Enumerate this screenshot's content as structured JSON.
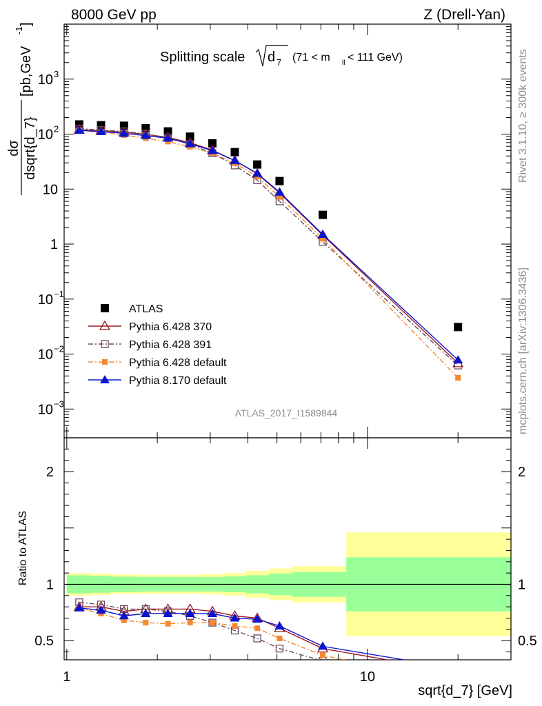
{
  "header": {
    "energy_label": "8000 GeV pp",
    "process_label": "Z (Drell-Yan)"
  },
  "side_labels": {
    "rivet": "Rivet 3.1.10, ≥ 300k events",
    "mcplots": "mcplots.cern.ch [arXiv:1306.3436]"
  },
  "watermark": "ATLAS_2017_I1589844",
  "colors": {
    "ATLAS": "#000000",
    "p370": "#9a1a22",
    "p391": "#6b4a5e",
    "p6def": "#f5872d",
    "p8def": "#0a14d0",
    "band_outer": "#ffff99",
    "band_inner": "#99ff99"
  },
  "chart_data": [
    {
      "type": "scatter",
      "panel": "main",
      "title_main": "Splitting scale",
      "title_var": "d",
      "title_sub": "7",
      "title_cut": "(71 < m",
      "title_cut_sub": "ll",
      "title_cut_end": " < 111 GeV)",
      "ylabel": "dσ / dsqrt{d_7} [pb,GeV⁻¹]",
      "ylabel_num": "dσ",
      "ylabel_den": "dsqrt{d_7}",
      "ylabel_unit": "[pb,GeV",
      "ylabel_unit_sup": "-1",
      "ylabel_unit_end": "]",
      "xscale": "log",
      "yscale": "log",
      "xlim": [
        0.98,
        30
      ],
      "ylim": [
        0.0003,
        10000
      ],
      "yticks": [
        {
          "v": 0.001,
          "base": "10",
          "exp": "−3"
        },
        {
          "v": 0.01,
          "base": "10",
          "exp": "−2"
        },
        {
          "v": 0.1,
          "base": "10",
          "exp": "−1"
        },
        {
          "v": 1,
          "base": "1",
          "exp": ""
        },
        {
          "v": 10,
          "base": "10",
          "exp": ""
        },
        {
          "v": 100,
          "base": "10",
          "exp": "2"
        },
        {
          "v": 1000,
          "base": "10",
          "exp": "3"
        }
      ],
      "x": [
        1.1,
        1.3,
        1.55,
        1.83,
        2.17,
        2.57,
        3.05,
        3.62,
        4.3,
        5.1,
        7.1,
        20.0
      ],
      "series": [
        {
          "name": "ATLAS",
          "key": "ATLAS",
          "marker": "square-filled",
          "line": "none",
          "values": [
            150,
            145,
            142,
            128,
            112,
            90,
            68,
            47,
            28,
            14,
            3.4,
            0.031
          ]
        },
        {
          "name": "Pythia 6.428 370",
          "key": "p370",
          "marker": "triangle-open",
          "line": "solid",
          "values": [
            120,
            116,
            108,
            99,
            87,
            70,
            51,
            33,
            19,
            8.5,
            1.45,
            0.0068
          ]
        },
        {
          "name": "Pythia 6.428 391",
          "key": "p391",
          "marker": "square-open",
          "line": "dashdot",
          "values": [
            126,
            118,
            112,
            101,
            86,
            65,
            45,
            27,
            14.5,
            6.0,
            1.1,
            0.0062
          ]
        },
        {
          "name": "Pythia 6.428 default",
          "key": "p6def",
          "marker": "square-filled-small",
          "line": "dashdot",
          "values": [
            118,
            108,
            96,
            84,
            73,
            59,
            45,
            29.5,
            17,
            7.2,
            1.25,
            0.0037
          ]
        },
        {
          "name": "Pythia 8.170 default",
          "key": "p8def",
          "marker": "triangle-filled",
          "line": "solid",
          "values": [
            117,
            111,
            103,
            94,
            84,
            67,
            50,
            33,
            19.3,
            8.8,
            1.5,
            0.0078
          ]
        }
      ]
    },
    {
      "type": "line",
      "panel": "ratio",
      "ylabel": "Ratio to ATLAS",
      "xlabel": "sqrt{d_7} [GeV]",
      "xscale": "log",
      "xlim": [
        0.98,
        30
      ],
      "ylim": [
        0.33,
        2.3
      ],
      "yticks": [
        {
          "v": 0.5,
          "label": "0.5"
        },
        {
          "v": 1,
          "label": "1"
        },
        {
          "v": 2,
          "label": "2"
        }
      ],
      "xticks": [
        {
          "v": 1,
          "label": "1"
        },
        {
          "v": 10,
          "label": "10"
        }
      ],
      "bands": {
        "edges": [
          1.0,
          1.2,
          1.4,
          1.7,
          2.0,
          2.35,
          2.8,
          3.3,
          3.95,
          4.7,
          5.6,
          8.5,
          30
        ],
        "inner": [
          0.08,
          0.075,
          0.068,
          0.065,
          0.065,
          0.065,
          0.065,
          0.07,
          0.08,
          0.095,
          0.11,
          0.24
        ],
        "outer": [
          0.1,
          0.095,
          0.088,
          0.085,
          0.085,
          0.085,
          0.09,
          0.1,
          0.12,
          0.14,
          0.16,
          0.46
        ]
      },
      "x": [
        1.1,
        1.3,
        1.55,
        1.83,
        2.17,
        2.57,
        3.05,
        3.62,
        4.3,
        5.1,
        7.1,
        20.0
      ],
      "series": [
        {
          "name": "Pythia 6.428 370",
          "key": "p370",
          "values": [
            0.8,
            0.8,
            0.76,
            0.78,
            0.78,
            0.78,
            0.76,
            0.72,
            0.7,
            0.61,
            0.43,
            0.22
          ]
        },
        {
          "name": "Pythia 6.428 391",
          "key": "p391",
          "values": [
            0.84,
            0.82,
            0.78,
            0.78,
            0.76,
            0.72,
            0.66,
            0.59,
            0.52,
            0.43,
            0.32,
            0.2
          ]
        },
        {
          "name": "Pythia 6.428 default",
          "key": "p6def",
          "values": [
            0.79,
            0.74,
            0.68,
            0.66,
            0.65,
            0.66,
            0.66,
            0.63,
            0.61,
            0.52,
            0.37,
            0.12
          ]
        },
        {
          "name": "Pythia 8.170 default",
          "key": "p8def",
          "values": [
            0.79,
            0.77,
            0.72,
            0.74,
            0.74,
            0.74,
            0.74,
            0.7,
            0.69,
            0.63,
            0.45,
            0.25
          ]
        }
      ]
    }
  ]
}
